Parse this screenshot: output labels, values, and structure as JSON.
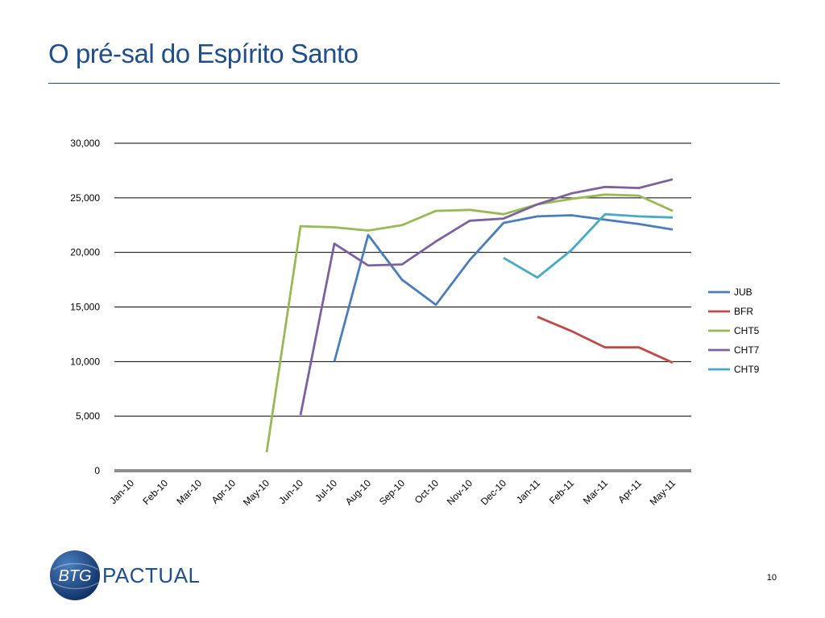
{
  "slide": {
    "title": "O pré-sal do Espírito Santo",
    "page_number": "10",
    "logo": {
      "monogram": "BTG",
      "word": "PACTUAL"
    }
  },
  "colors": {
    "title": "#1f4e8c",
    "JUB": "#4a7ebb",
    "BFR": "#be4b48",
    "CHT5": "#98b954",
    "CHT7": "#7d60a0",
    "CHT9": "#46aac5"
  },
  "chart_data": {
    "type": "line",
    "title": "",
    "xlabel": "",
    "ylabel": "",
    "ylim": [
      0,
      30000
    ],
    "yticks": [
      "0",
      "5,000",
      "10,000",
      "15,000",
      "20,000",
      "25,000",
      "30,000"
    ],
    "grid": true,
    "legend_position": "right",
    "categories": [
      "Jan-10",
      "Feb-10",
      "Mar-10",
      "Apr-10",
      "May-10",
      "Jun-10",
      "Jul-10",
      "Aug-10",
      "Sep-10",
      "Oct-10",
      "Nov-10",
      "Dec-10",
      "Jan-11",
      "Feb-11",
      "Mar-11",
      "Apr-11",
      "May-11"
    ],
    "series": [
      {
        "name": "JUB",
        "values": [
          null,
          null,
          null,
          null,
          null,
          null,
          10000,
          21600,
          17500,
          15200,
          19300,
          22700,
          23300,
          23400,
          23000,
          22600,
          22100
        ]
      },
      {
        "name": "BFR",
        "values": [
          null,
          null,
          null,
          null,
          null,
          null,
          null,
          null,
          null,
          null,
          null,
          null,
          14100,
          12800,
          11300,
          11300,
          9900
        ]
      },
      {
        "name": "CHT5",
        "values": [
          null,
          null,
          null,
          null,
          1700,
          22400,
          22300,
          22000,
          22500,
          23800,
          23900,
          23500,
          24400,
          24900,
          25300,
          25200,
          23800
        ]
      },
      {
        "name": "CHT7",
        "values": [
          null,
          null,
          null,
          null,
          null,
          5100,
          20800,
          18800,
          18900,
          21000,
          22900,
          23100,
          24400,
          25400,
          26000,
          25900,
          26700
        ]
      },
      {
        "name": "CHT9",
        "values": [
          null,
          null,
          null,
          null,
          null,
          null,
          null,
          null,
          null,
          null,
          null,
          19500,
          17700,
          20200,
          23500,
          23300,
          23200
        ]
      }
    ]
  }
}
